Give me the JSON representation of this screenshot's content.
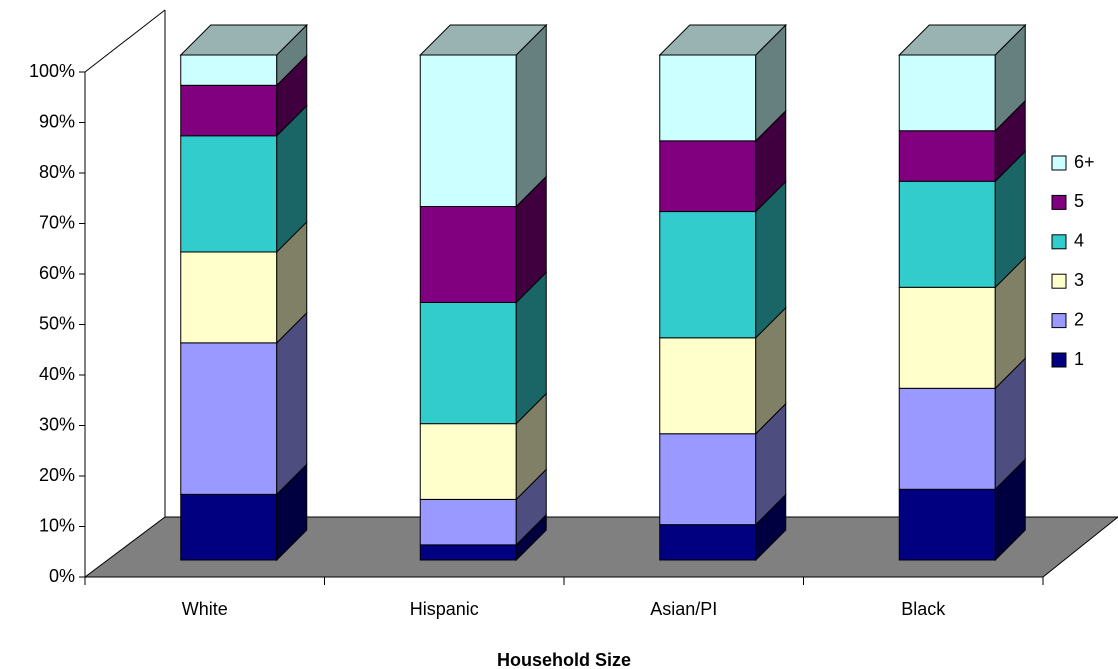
{
  "chart_data": {
    "type": "bar3d_stacked",
    "x_label": "Household Size",
    "categories": [
      "White",
      "Hispanic",
      "Asian/PI",
      "Black"
    ],
    "series": [
      {
        "name": "1",
        "color": "#000080",
        "values": [
          13,
          3,
          7,
          14
        ]
      },
      {
        "name": "2",
        "color": "#9999ff",
        "values": [
          30,
          9,
          18,
          20
        ]
      },
      {
        "name": "3",
        "color": "#ffffcc",
        "values": [
          18,
          15,
          19,
          20
        ]
      },
      {
        "name": "4",
        "color": "#33cccc",
        "values": [
          23,
          24,
          25,
          21
        ]
      },
      {
        "name": "5",
        "color": "#800080",
        "values": [
          10,
          19,
          14,
          10
        ]
      },
      {
        "name": "6+",
        "color": "#ccffff",
        "values": [
          6,
          30,
          17,
          15
        ]
      }
    ],
    "ylim": [
      0,
      100
    ],
    "yticks": [
      {
        "value": 0,
        "label": "0%"
      },
      {
        "value": 10,
        "label": "10%"
      },
      {
        "value": 20,
        "label": "20%"
      },
      {
        "value": 30,
        "label": "30%"
      },
      {
        "value": 40,
        "label": "40%"
      },
      {
        "value": 50,
        "label": "50%"
      },
      {
        "value": 60,
        "label": "60%"
      },
      {
        "value": 70,
        "label": "70%"
      },
      {
        "value": 80,
        "label": "80%"
      },
      {
        "value": 90,
        "label": "90%"
      },
      {
        "value": 100,
        "label": "100%"
      }
    ],
    "legend": "right"
  }
}
